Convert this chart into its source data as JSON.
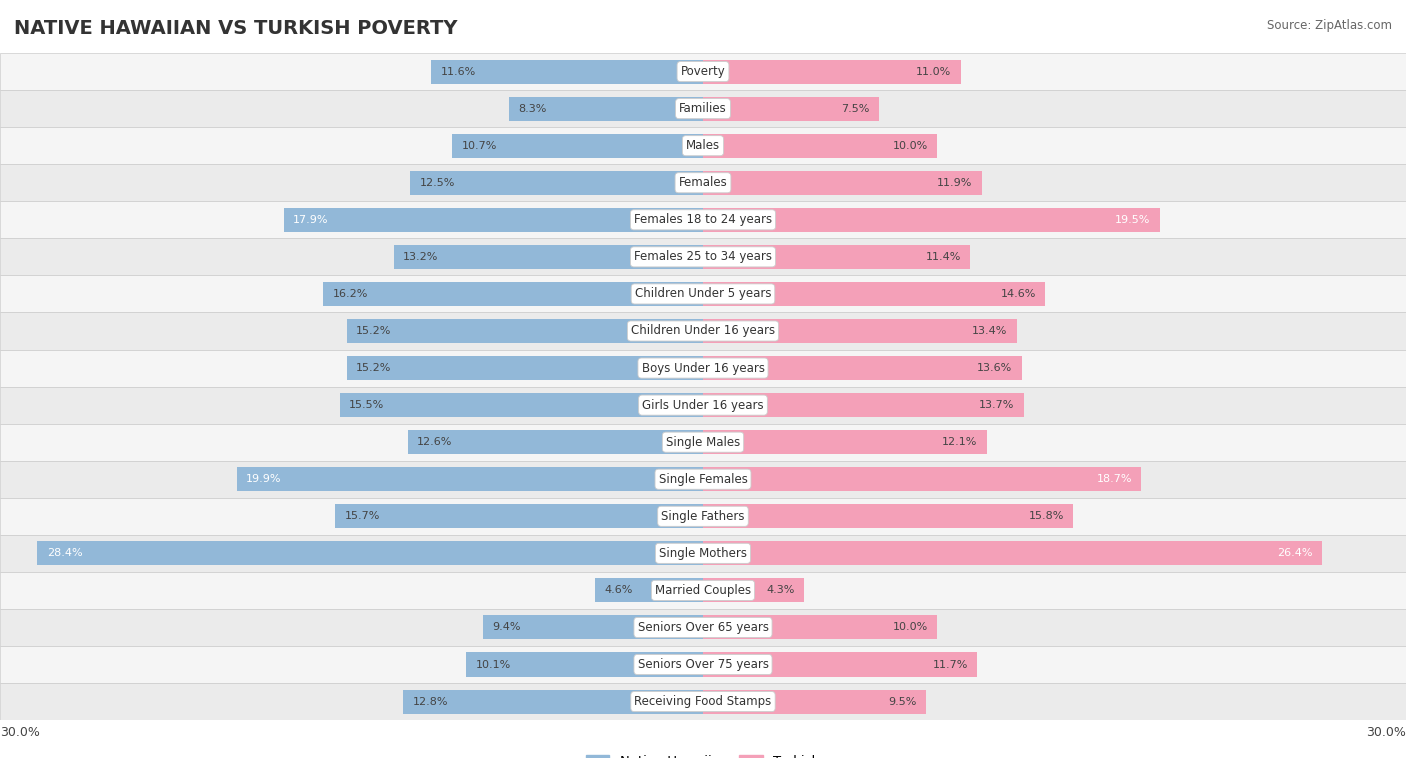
{
  "title": "NATIVE HAWAIIAN VS TURKISH POVERTY",
  "source": "Source: ZipAtlas.com",
  "categories": [
    "Poverty",
    "Families",
    "Males",
    "Females",
    "Females 18 to 24 years",
    "Females 25 to 34 years",
    "Children Under 5 years",
    "Children Under 16 years",
    "Boys Under 16 years",
    "Girls Under 16 years",
    "Single Males",
    "Single Females",
    "Single Fathers",
    "Single Mothers",
    "Married Couples",
    "Seniors Over 65 years",
    "Seniors Over 75 years",
    "Receiving Food Stamps"
  ],
  "native_hawaiian": [
    11.6,
    8.3,
    10.7,
    12.5,
    17.9,
    13.2,
    16.2,
    15.2,
    15.2,
    15.5,
    12.6,
    19.9,
    15.7,
    28.4,
    4.6,
    9.4,
    10.1,
    12.8
  ],
  "turkish": [
    11.0,
    7.5,
    10.0,
    11.9,
    19.5,
    11.4,
    14.6,
    13.4,
    13.6,
    13.7,
    12.1,
    18.7,
    15.8,
    26.4,
    4.3,
    10.0,
    11.7,
    9.5
  ],
  "max_val": 30.0,
  "blue_color": "#92b8d8",
  "pink_color": "#f4a0b8",
  "blue_dark_color": "#5a8ab0",
  "pink_dark_color": "#e0607a",
  "row_colors": [
    "#f5f5f5",
    "#ebebeb"
  ],
  "label_fontsize": 8.5,
  "value_fontsize": 8.0,
  "title_fontsize": 14,
  "bar_height": 0.65,
  "white_text_threshold": 17.5
}
